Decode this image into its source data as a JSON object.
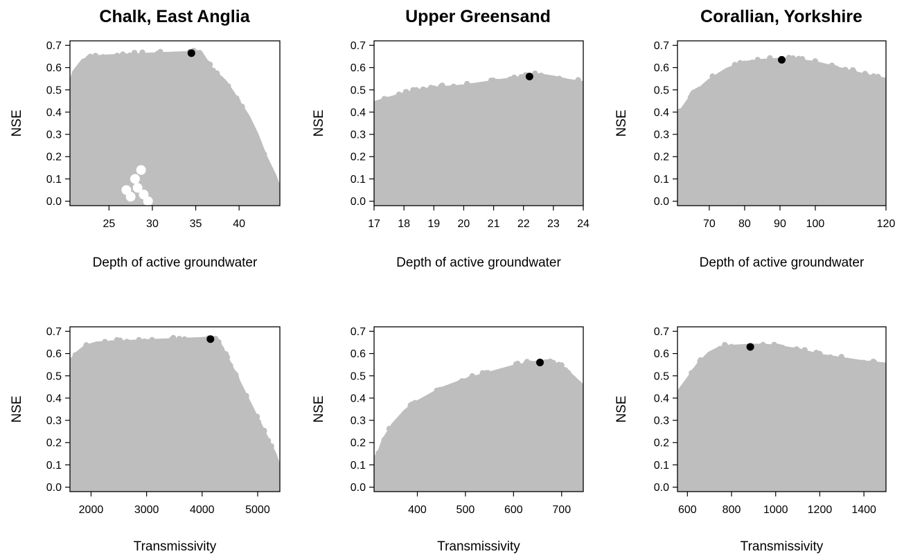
{
  "figure": {
    "column_titles": [
      "Chalk, East Anglia",
      "Upper Greensand",
      "Corallian, Yorkshire"
    ]
  },
  "colors": {
    "cloud": "#bebebe",
    "best_point": "#000000",
    "axis": "#000000"
  },
  "chart_data": [
    {
      "type": "scatter",
      "title": "Chalk, East Anglia",
      "xlabel": "Depth of active groundwater",
      "ylabel": "NSE",
      "xlim": [
        20.5,
        44.7
      ],
      "ylim": [
        -0.02,
        0.72
      ],
      "xticks": [
        25,
        30,
        35,
        40
      ],
      "yticks": [
        0.0,
        0.1,
        0.2,
        0.3,
        0.4,
        0.5,
        0.6,
        0.7
      ],
      "ytick_labels": [
        "0.0",
        "0.1",
        "0.2",
        "0.3",
        "0.4",
        "0.5",
        "0.6",
        "0.7"
      ],
      "upper_envelope": [
        [
          20.5,
          0.52
        ],
        [
          21,
          0.58
        ],
        [
          22,
          0.63
        ],
        [
          23,
          0.645
        ],
        [
          25,
          0.65
        ],
        [
          28,
          0.655
        ],
        [
          31,
          0.66
        ],
        [
          34,
          0.665
        ],
        [
          35.5,
          0.67
        ],
        [
          36,
          0.64
        ],
        [
          37,
          0.58
        ],
        [
          38,
          0.55
        ],
        [
          39,
          0.5
        ],
        [
          40,
          0.44
        ],
        [
          41,
          0.38
        ],
        [
          42,
          0.3
        ],
        [
          43,
          0.2
        ],
        [
          44,
          0.12
        ],
        [
          44.7,
          0.05
        ]
      ],
      "best": {
        "x": 34.5,
        "y": 0.665
      },
      "grid": false,
      "legend": "none"
    },
    {
      "type": "scatter",
      "title": "Upper Greensand",
      "xlabel": "Depth of active groundwater",
      "ylabel": "NSE",
      "xlim": [
        17,
        24
      ],
      "ylim": [
        -0.02,
        0.72
      ],
      "xticks": [
        17,
        18,
        19,
        20,
        21,
        22,
        23,
        24
      ],
      "yticks": [
        0.0,
        0.1,
        0.2,
        0.3,
        0.4,
        0.5,
        0.6,
        0.7
      ],
      "ytick_labels": [
        "0.0",
        "0.1",
        "0.2",
        "0.3",
        "0.4",
        "0.5",
        "0.6",
        "0.7"
      ],
      "upper_envelope": [
        [
          17,
          0.44
        ],
        [
          17.5,
          0.46
        ],
        [
          18,
          0.48
        ],
        [
          18.5,
          0.495
        ],
        [
          19,
          0.505
        ],
        [
          20,
          0.515
        ],
        [
          21,
          0.535
        ],
        [
          22,
          0.555
        ],
        [
          22.5,
          0.565
        ],
        [
          23,
          0.555
        ],
        [
          23.5,
          0.54
        ],
        [
          24,
          0.53
        ]
      ],
      "best": {
        "x": 22.2,
        "y": 0.56
      },
      "grid": false,
      "legend": "none"
    },
    {
      "type": "scatter",
      "title": "Corallian, Yorkshire",
      "xlabel": "Depth of active groundwater",
      "ylabel": "NSE",
      "xlim": [
        61,
        120
      ],
      "ylim": [
        -0.02,
        0.72
      ],
      "xticks": [
        70,
        80,
        90,
        100,
        120
      ],
      "yticks": [
        0.0,
        0.1,
        0.2,
        0.3,
        0.4,
        0.5,
        0.6,
        0.7
      ],
      "ytick_labels": [
        "0.0",
        "0.1",
        "0.2",
        "0.3",
        "0.4",
        "0.5",
        "0.6",
        "0.7"
      ],
      "upper_envelope": [
        [
          61,
          0.38
        ],
        [
          65,
          0.47
        ],
        [
          70,
          0.54
        ],
        [
          75,
          0.59
        ],
        [
          80,
          0.62
        ],
        [
          85,
          0.63
        ],
        [
          90,
          0.635
        ],
        [
          95,
          0.63
        ],
        [
          100,
          0.62
        ],
        [
          105,
          0.6
        ],
        [
          110,
          0.58
        ],
        [
          115,
          0.56
        ],
        [
          120,
          0.545
        ]
      ],
      "best": {
        "x": 90.5,
        "y": 0.635
      },
      "grid": false,
      "legend": "none"
    },
    {
      "type": "scatter",
      "title": "",
      "xlabel": "Transmissivity",
      "ylabel": "NSE",
      "xlim": [
        1620,
        5400
      ],
      "ylim": [
        -0.02,
        0.72
      ],
      "xticks": [
        2000,
        3000,
        4000,
        5000
      ],
      "yticks": [
        0.0,
        0.1,
        0.2,
        0.3,
        0.4,
        0.5,
        0.6,
        0.7
      ],
      "ytick_labels": [
        "0.0",
        "0.1",
        "0.2",
        "0.3",
        "0.4",
        "0.5",
        "0.6",
        "0.7"
      ],
      "upper_envelope": [
        [
          1620,
          0.56
        ],
        [
          1750,
          0.6
        ],
        [
          1900,
          0.63
        ],
        [
          2100,
          0.645
        ],
        [
          2500,
          0.65
        ],
        [
          3000,
          0.655
        ],
        [
          3500,
          0.66
        ],
        [
          4000,
          0.665
        ],
        [
          4250,
          0.67
        ],
        [
          4400,
          0.6
        ],
        [
          4500,
          0.55
        ],
        [
          4700,
          0.45
        ],
        [
          4900,
          0.35
        ],
        [
          5100,
          0.25
        ],
        [
          5300,
          0.15
        ],
        [
          5400,
          0.08
        ]
      ],
      "best": {
        "x": 4150,
        "y": 0.665
      },
      "grid": false,
      "legend": "none"
    },
    {
      "type": "scatter",
      "title": "",
      "xlabel": "Transmissivity",
      "ylabel": "NSE",
      "xlim": [
        310,
        745
      ],
      "ylim": [
        -0.02,
        0.72
      ],
      "xticks": [
        400,
        500,
        600,
        700
      ],
      "yticks": [
        0.0,
        0.1,
        0.2,
        0.3,
        0.4,
        0.5,
        0.6,
        0.7
      ],
      "ytick_labels": [
        "0.0",
        "0.1",
        "0.2",
        "0.3",
        "0.4",
        "0.5",
        "0.6",
        "0.7"
      ],
      "upper_envelope": [
        [
          310,
          0.08
        ],
        [
          320,
          0.15
        ],
        [
          330,
          0.21
        ],
        [
          350,
          0.28
        ],
        [
          375,
          0.34
        ],
        [
          400,
          0.38
        ],
        [
          450,
          0.44
        ],
        [
          500,
          0.48
        ],
        [
          550,
          0.51
        ],
        [
          600,
          0.54
        ],
        [
          650,
          0.56
        ],
        [
          670,
          0.565
        ],
        [
          700,
          0.54
        ],
        [
          720,
          0.5
        ],
        [
          745,
          0.45
        ]
      ],
      "best": {
        "x": 655,
        "y": 0.56
      },
      "grid": false,
      "legend": "none"
    },
    {
      "type": "scatter",
      "title": "",
      "xlabel": "Transmissivity",
      "ylabel": "NSE",
      "xlim": [
        555,
        1500
      ],
      "ylim": [
        -0.02,
        0.72
      ],
      "xticks": [
        600,
        800,
        1000,
        1200,
        1400
      ],
      "yticks": [
        0.0,
        0.1,
        0.2,
        0.3,
        0.4,
        0.5,
        0.6,
        0.7
      ],
      "ytick_labels": [
        "0.0",
        "0.1",
        "0.2",
        "0.3",
        "0.4",
        "0.5",
        "0.6",
        "0.7"
      ],
      "upper_envelope": [
        [
          555,
          0.42
        ],
        [
          600,
          0.48
        ],
        [
          650,
          0.55
        ],
        [
          700,
          0.6
        ],
        [
          750,
          0.625
        ],
        [
          800,
          0.63
        ],
        [
          890,
          0.635
        ],
        [
          950,
          0.635
        ],
        [
          1000,
          0.63
        ],
        [
          1100,
          0.615
        ],
        [
          1200,
          0.59
        ],
        [
          1300,
          0.575
        ],
        [
          1400,
          0.56
        ],
        [
          1500,
          0.55
        ]
      ],
      "best": {
        "x": 885,
        "y": 0.63
      },
      "grid": false,
      "legend": "none"
    }
  ]
}
